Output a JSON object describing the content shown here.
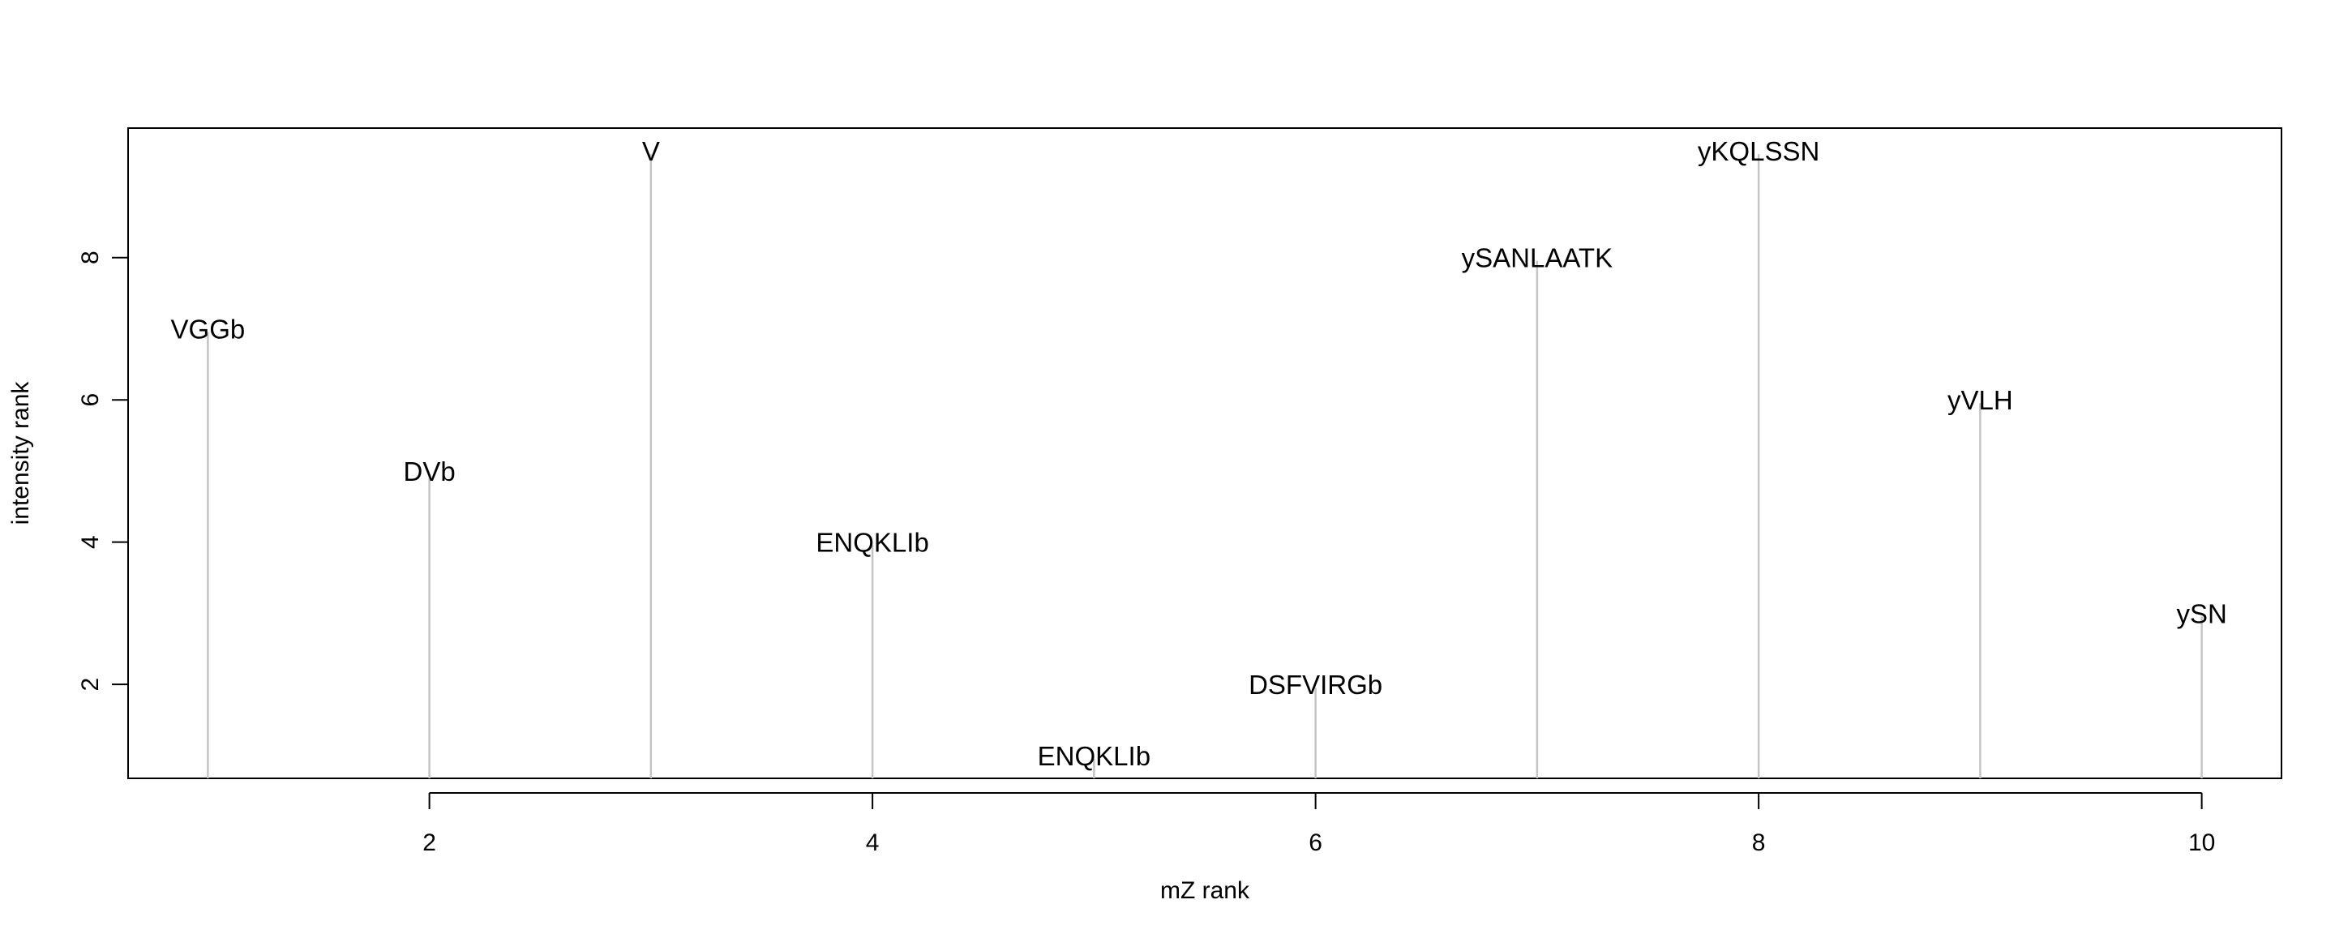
{
  "chart_data": {
    "type": "bar",
    "title": "",
    "xlabel": "mZ rank",
    "ylabel": "intensity rank",
    "xlim": [
      0.64,
      10.36
    ],
    "ylim": [
      0.68,
      9.82
    ],
    "x_ticks": [
      2,
      4,
      6,
      8,
      10
    ],
    "y_ticks": [
      2,
      4,
      6,
      8
    ],
    "grid": false,
    "legend": "none",
    "bar_style": "vertical lines from axis bottom",
    "line_color": "#c4c4c4",
    "points": [
      {
        "x": 1,
        "y": 7,
        "label": "VGGb"
      },
      {
        "x": 2,
        "y": 5,
        "label": "DVb"
      },
      {
        "x": 3,
        "y": 9.5,
        "label": "V"
      },
      {
        "x": 4,
        "y": 4,
        "label": "ENQKLIb"
      },
      {
        "x": 5,
        "y": 1,
        "label": "ENQKLIb"
      },
      {
        "x": 6,
        "y": 2,
        "label": "DSFVIRGb"
      },
      {
        "x": 7,
        "y": 8,
        "label": "ySANLAATK"
      },
      {
        "x": 8,
        "y": 9.5,
        "label": "yKQLSSN"
      },
      {
        "x": 9,
        "y": 6,
        "label": "yVLH"
      },
      {
        "x": 10,
        "y": 3,
        "label": "ySN"
      }
    ]
  }
}
